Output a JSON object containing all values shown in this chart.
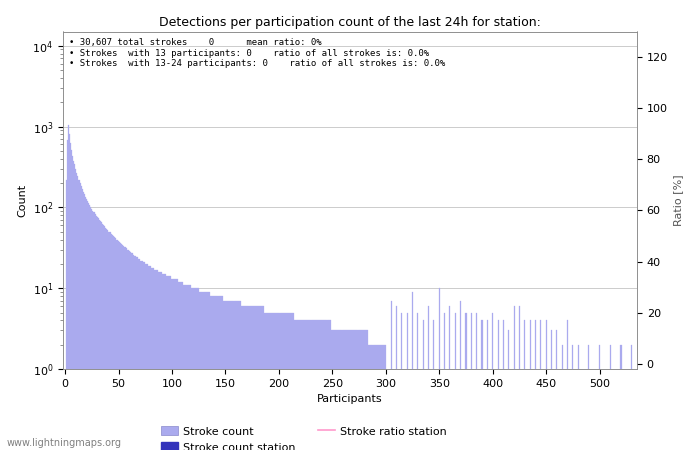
{
  "title": "Detections per participation count of the last 24h for station:",
  "xlabel": "Participants",
  "ylabel_left": "Count",
  "ylabel_right": "Ratio [%]",
  "annotation_lines": [
    " 30,607 total strokes    0      mean ratio: 0%",
    " Strokes  with 13 participants: 0    ratio of all strokes is: 0.0%",
    " Strokes  with 13-24 participants: 0    ratio of all strokes is: 0.0%"
  ],
  "watermark": "www.lightningmaps.org",
  "bar_color_main": "#aaaaee",
  "bar_color_station": "#3333bb",
  "line_color_ratio": "#ff99cc",
  "legend_labels": [
    "Stroke count",
    "Stroke count station",
    "Stroke ratio station"
  ],
  "xlim": [
    -2,
    535
  ],
  "ylim_log_min": 1,
  "ylim_log_max": 15000,
  "yticks_left": [
    1,
    10,
    100,
    1000,
    10000
  ],
  "yticks_right": [
    0,
    20,
    40,
    60,
    80,
    100,
    120
  ],
  "xticks": [
    0,
    50,
    100,
    150,
    200,
    250,
    300,
    350,
    400,
    450,
    500
  ],
  "bar_x": [
    1,
    2,
    3,
    4,
    5,
    6,
    7,
    8,
    9,
    10,
    11,
    12,
    13,
    14,
    15,
    16,
    17,
    18,
    19,
    20,
    21,
    22,
    23,
    24,
    25,
    26,
    27,
    28,
    29,
    30,
    31,
    32,
    33,
    34,
    35,
    36,
    37,
    38,
    39,
    40,
    41,
    42,
    43,
    44,
    45,
    46,
    47,
    48,
    49,
    50,
    51,
    52,
    53,
    54,
    55,
    56,
    57,
    58,
    59,
    60,
    61,
    62,
    63,
    64,
    65,
    66,
    67,
    68,
    69,
    70,
    71,
    72,
    73,
    74,
    75,
    76,
    77,
    78,
    79,
    80,
    81,
    82,
    83,
    84,
    85,
    86,
    87,
    88,
    89,
    90,
    91,
    92,
    93,
    94,
    95,
    96,
    97,
    98,
    99,
    100,
    101,
    102,
    103,
    104,
    105,
    106,
    107,
    108,
    109,
    110,
    111,
    112,
    113,
    114,
    115,
    116,
    117,
    118,
    119,
    120,
    121,
    122,
    123,
    124,
    125,
    126,
    127,
    128,
    129,
    130,
    131,
    132,
    133,
    134,
    135,
    136,
    137,
    138,
    139,
    140,
    141,
    142,
    143,
    144,
    145,
    146,
    147,
    148,
    149,
    150,
    151,
    152,
    153,
    154,
    155,
    156,
    157,
    158,
    159,
    160,
    161,
    162,
    163,
    164,
    165,
    166,
    167,
    168,
    169,
    170,
    171,
    172,
    173,
    174,
    175,
    176,
    177,
    178,
    179,
    180,
    181,
    182,
    183,
    184,
    185,
    186,
    187,
    188,
    189,
    190,
    191,
    192,
    193,
    194,
    195,
    196,
    197,
    198,
    199,
    200,
    201,
    202,
    203,
    204,
    205,
    206,
    207,
    208,
    209,
    210,
    211,
    212,
    213,
    214,
    215,
    216,
    217,
    218,
    219,
    220,
    221,
    222,
    223,
    224,
    225,
    226,
    227,
    228,
    229,
    230,
    231,
    232,
    233,
    234,
    235,
    236,
    237,
    238,
    239,
    240,
    241,
    242,
    243,
    244,
    245,
    246,
    247,
    248,
    249,
    250,
    251,
    252,
    253,
    254,
    255,
    256,
    257,
    258,
    259,
    260,
    261,
    262,
    263,
    264,
    265,
    266,
    267,
    268,
    269,
    270,
    271,
    272,
    273,
    274,
    275,
    276,
    277,
    278,
    279,
    280,
    281,
    282,
    283,
    284,
    285,
    286,
    287,
    288,
    289,
    290,
    291,
    292,
    293,
    294,
    295,
    296,
    297,
    298,
    299,
    300,
    305,
    310,
    315,
    320,
    325,
    330,
    335,
    340,
    345,
    350,
    355,
    360,
    365,
    370,
    375,
    380,
    385,
    390,
    395,
    400,
    405,
    410,
    415,
    420,
    425,
    430,
    435,
    440,
    445,
    450,
    455,
    460,
    465,
    470,
    475,
    480,
    490,
    500,
    510,
    520,
    530
  ],
  "bar_y": [
    220,
    680,
    1050,
    820,
    630,
    520,
    430,
    380,
    340,
    300,
    270,
    245,
    220,
    200,
    183,
    168,
    155,
    145,
    136,
    128,
    120,
    113,
    107,
    101,
    96,
    91,
    87,
    83,
    79,
    76,
    73,
    70,
    67,
    65,
    62,
    60,
    58,
    56,
    54,
    52,
    50,
    49,
    47,
    46,
    44,
    43,
    42,
    40,
    39,
    38,
    37,
    36,
    35,
    34,
    33,
    32,
    31,
    30,
    30,
    29,
    28,
    27,
    27,
    26,
    25,
    25,
    24,
    24,
    23,
    23,
    22,
    22,
    21,
    21,
    20,
    20,
    20,
    19,
    19,
    19,
    18,
    18,
    18,
    17,
    17,
    17,
    16,
    16,
    16,
    16,
    15,
    15,
    15,
    15,
    14,
    14,
    14,
    14,
    14,
    13,
    13,
    13,
    13,
    13,
    13,
    12,
    12,
    12,
    12,
    12,
    11,
    11,
    11,
    11,
    11,
    11,
    11,
    10,
    10,
    10,
    10,
    10,
    10,
    10,
    10,
    9,
    9,
    9,
    9,
    9,
    9,
    9,
    9,
    9,
    9,
    8,
    8,
    8,
    8,
    8,
    8,
    8,
    8,
    8,
    8,
    8,
    8,
    7,
    7,
    7,
    7,
    7,
    7,
    7,
    7,
    7,
    7,
    7,
    7,
    7,
    7,
    7,
    7,
    7,
    6,
    6,
    6,
    6,
    6,
    6,
    6,
    6,
    6,
    6,
    6,
    6,
    6,
    6,
    6,
    6,
    6,
    6,
    6,
    6,
    6,
    6,
    5,
    5,
    5,
    5,
    5,
    5,
    5,
    5,
    5,
    5,
    5,
    5,
    5,
    5,
    5,
    5,
    5,
    5,
    5,
    5,
    5,
    5,
    5,
    5,
    5,
    5,
    5,
    5,
    4,
    4,
    4,
    4,
    4,
    4,
    4,
    4,
    4,
    4,
    4,
    4,
    4,
    4,
    4,
    4,
    4,
    4,
    4,
    4,
    4,
    4,
    4,
    4,
    4,
    4,
    4,
    4,
    4,
    4,
    4,
    4,
    4,
    4,
    3,
    3,
    3,
    3,
    3,
    3,
    3,
    3,
    3,
    3,
    3,
    3,
    3,
    3,
    3,
    3,
    3,
    3,
    3,
    3,
    3,
    3,
    3,
    3,
    3,
    3,
    3,
    3,
    3,
    3,
    3,
    3,
    3,
    3,
    3,
    2,
    2,
    2,
    2,
    2,
    2,
    2,
    2,
    2,
    2,
    2,
    2,
    2,
    2,
    2,
    2,
    2,
    7,
    6,
    5,
    5,
    9,
    5,
    4,
    6,
    4,
    10,
    5,
    6,
    5,
    7,
    5,
    5,
    5,
    4,
    4,
    5,
    4,
    4,
    3,
    6,
    6,
    4,
    4,
    4,
    4,
    4,
    3,
    3,
    2,
    4,
    2,
    2,
    2,
    2,
    2,
    2,
    2
  ]
}
